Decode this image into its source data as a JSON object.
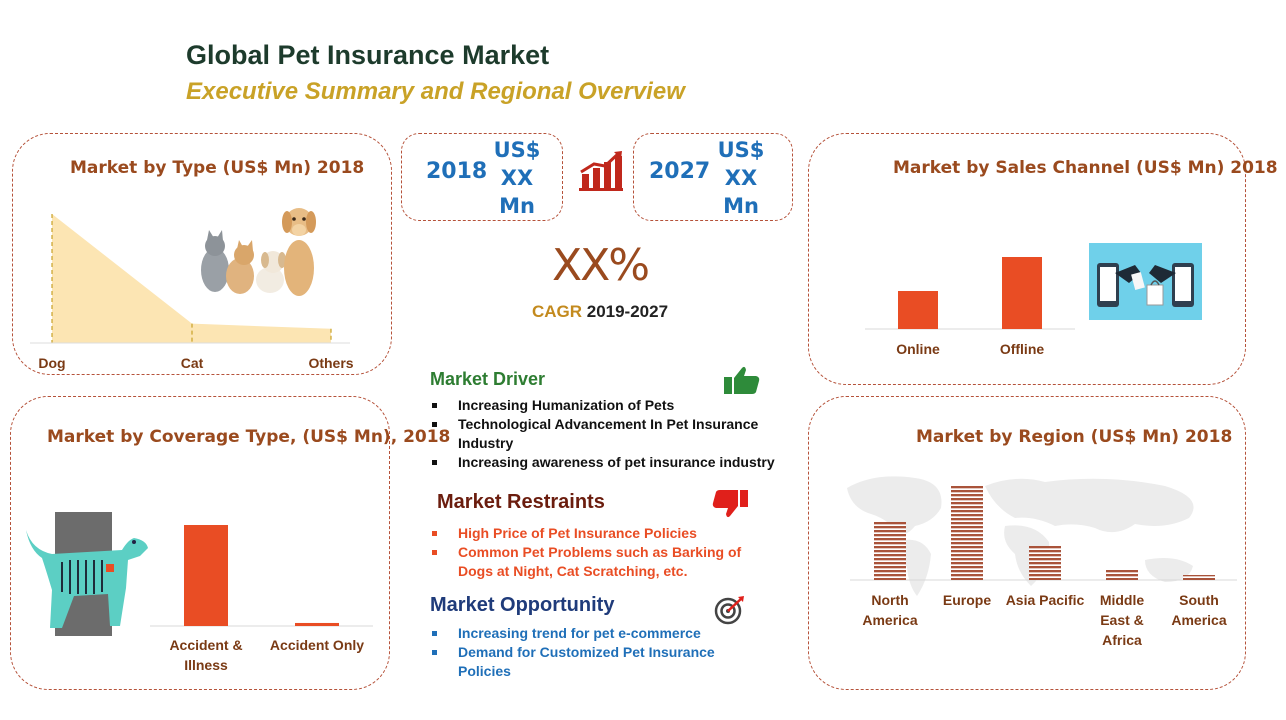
{
  "header": {
    "title": "Global Pet Insurance Market",
    "subtitle": "Executive Summary and Regional Overview"
  },
  "kpis": {
    "year_start": "2018",
    "year_start_value": [
      "US$",
      "XX",
      "Mn"
    ],
    "year_end": "2027",
    "year_end_value": [
      "US$",
      "XX",
      "Mn"
    ],
    "cagr_value": "XX%",
    "cagr_label": "CAGR",
    "cagr_period": "2019-2027"
  },
  "drivers": {
    "title": "Market Driver",
    "items": [
      "Increasing Humanization of Pets",
      "Technological Advancement In Pet Insurance Industry",
      "Increasing awareness of pet insurance industry"
    ]
  },
  "restraints": {
    "title": "Market Restraints",
    "items": [
      "High Price of Pet Insurance Policies",
      "Common Pet Problems such as Barking of Dogs at Night, Cat Scratching, etc."
    ]
  },
  "opportunity": {
    "title": "Market Opportunity",
    "items": [
      "Increasing trend for pet e-commerce",
      "Demand for Customized Pet Insurance Policies"
    ]
  },
  "colors": {
    "accent_orange": "#e94d24",
    "area_fill": "#fce5b3",
    "driver_green": "#2e7d32",
    "restraint_red": "#e0201b",
    "opportunity_blue": "#1f4e9c",
    "region_bar": "#a9533a"
  },
  "icons": [
    "growth-chart-icon",
    "thumbs-up-icon",
    "thumbs-down-icon",
    "target-icon",
    "pets-illustration",
    "ecommerce-illustration",
    "dog-xray-illustration",
    "world-map-illustration"
  ],
  "chart_data": [
    {
      "type": "area",
      "title": "Market by Type (US$ Mn) 2018",
      "categories": [
        "Dog",
        "Cat",
        "Others"
      ],
      "values": [
        100,
        15,
        11
      ]
    },
    {
      "type": "bar",
      "title": "Market by Sales Channel (US$ Mn) 2018",
      "categories": [
        "Online",
        "Offline"
      ],
      "values": [
        38,
        72
      ]
    },
    {
      "type": "bar",
      "title": "Market by Coverage Type, (US$ Mn), 2018",
      "categories": [
        "Accident & Illness",
        "Accident Only"
      ],
      "values": [
        100,
        3
      ]
    },
    {
      "type": "bar",
      "title": "Market by Region (US$ Mn) 2018",
      "categories": [
        "North America",
        "Europe",
        "Asia Pacific",
        "Middle East & Africa",
        "South America"
      ],
      "values": [
        58,
        94,
        34,
        10,
        5
      ]
    }
  ]
}
